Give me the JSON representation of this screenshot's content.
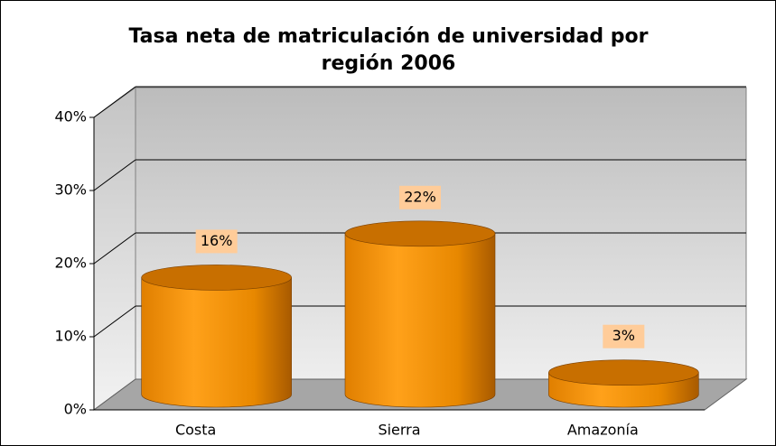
{
  "chart_data": {
    "type": "bar3d",
    "title": "Tasa neta de matriculación de universidad por región 2006",
    "categories": [
      "Costa",
      "Sierra",
      "Amazonía"
    ],
    "values": [
      16,
      22,
      3
    ],
    "value_labels": [
      "16%",
      "22%",
      "3%"
    ],
    "color": "#f39200",
    "ylim": [
      0,
      40
    ],
    "yticks": [
      {
        "value": 0,
        "label": "0%"
      },
      {
        "value": 10,
        "label": "10%"
      },
      {
        "value": 20,
        "label": "20%"
      },
      {
        "value": 30,
        "label": "30%"
      },
      {
        "value": 40,
        "label": "40%"
      }
    ],
    "grid": true
  }
}
